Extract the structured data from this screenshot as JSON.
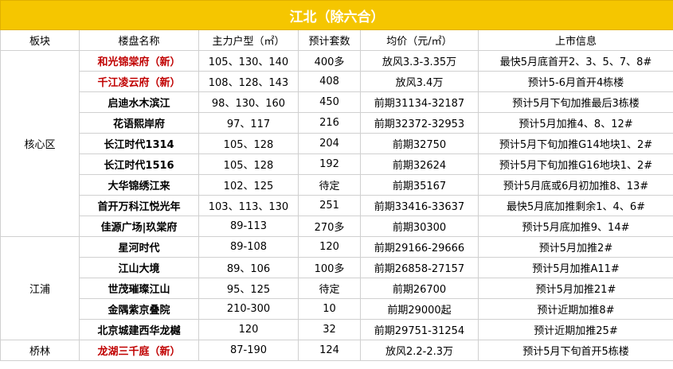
{
  "title": "江北（除六合）",
  "headers": [
    "板块",
    "楼盘名称",
    "主力户型（㎡）",
    "预计套数",
    "均价（元/㎡）",
    "上市信息"
  ],
  "groups": [
    {
      "district": "核心区",
      "rows": [
        {
          "name": "和光锦棠府（新）",
          "new": true,
          "types": "105、130、140",
          "units": "400多",
          "price": "放风3.3-3.35万",
          "info": "最快5月底首开2、3、5、7、8#"
        },
        {
          "name": "千江凌云府（新）",
          "new": true,
          "types": "108、128、143",
          "units": "408",
          "price": "放风3.4万",
          "info": "预计5-6月首开4栋楼"
        },
        {
          "name": "启迪水木滨江",
          "new": false,
          "types": "98、130、160",
          "units": "450",
          "price": "前期31134-32187",
          "info": "预计5月下旬加推最后3栋楼"
        },
        {
          "name": "花语熙岸府",
          "new": false,
          "types": "97、117",
          "units": "216",
          "price": "前期32372-32953",
          "info": "预计5月加推4、8、12#"
        },
        {
          "name": "长江时代1314",
          "new": false,
          "types": "105、128",
          "units": "204",
          "price": "前期32750",
          "info": "预计5月下旬加推G14地块1、2#"
        },
        {
          "name": "长江时代1516",
          "new": false,
          "types": "105、128",
          "units": "192",
          "price": "前期32624",
          "info": "预计5月下旬加推G16地块1、2#"
        },
        {
          "name": "大华锦绣江来",
          "new": false,
          "types": "102、125",
          "units": "待定",
          "price": "前期35167",
          "info": "预计5月底或6月初加推8、13#"
        },
        {
          "name": "首开万科江悦光年",
          "new": false,
          "types": "103、113、130",
          "units": "251",
          "price": "前期33416-33637",
          "info": "最快5月底加推剩余1、4、6#"
        },
        {
          "name": "佳源广场|玖棠府",
          "new": false,
          "types": "89-113",
          "units": "270多",
          "price": "前期30300",
          "info": "预计5月底加推9、14#"
        }
      ]
    },
    {
      "district": "江浦",
      "rows": [
        {
          "name": "星河时代",
          "new": false,
          "types": "89-108",
          "units": "120",
          "price": "前期29166-29666",
          "info": "预计5月加推2#"
        },
        {
          "name": "江山大境",
          "new": false,
          "types": "89、106",
          "units": "100多",
          "price": "前期26858-27157",
          "info": "预计5月加推A11#"
        },
        {
          "name": "世茂璀璨江山",
          "new": false,
          "types": "95、125",
          "units": "待定",
          "price": "前期26700",
          "info": "预计5月加推21#"
        },
        {
          "name": "金隅紫京叠院",
          "new": false,
          "types": "210-300",
          "units": "10",
          "price": "前期29000起",
          "info": "预计近期加推8#"
        },
        {
          "name": "北京城建西华龙樾",
          "new": false,
          "types": "120",
          "units": "32",
          "price": "前期29751-31254",
          "info": "预计近期加推25#"
        }
      ]
    },
    {
      "district": "桥林",
      "rows": [
        {
          "name": "龙湖三千庭（新）",
          "new": true,
          "types": "87-190",
          "units": "124",
          "price": "放风2.2-2.3万",
          "info": "预计5月下旬首开5栋楼"
        }
      ]
    }
  ]
}
